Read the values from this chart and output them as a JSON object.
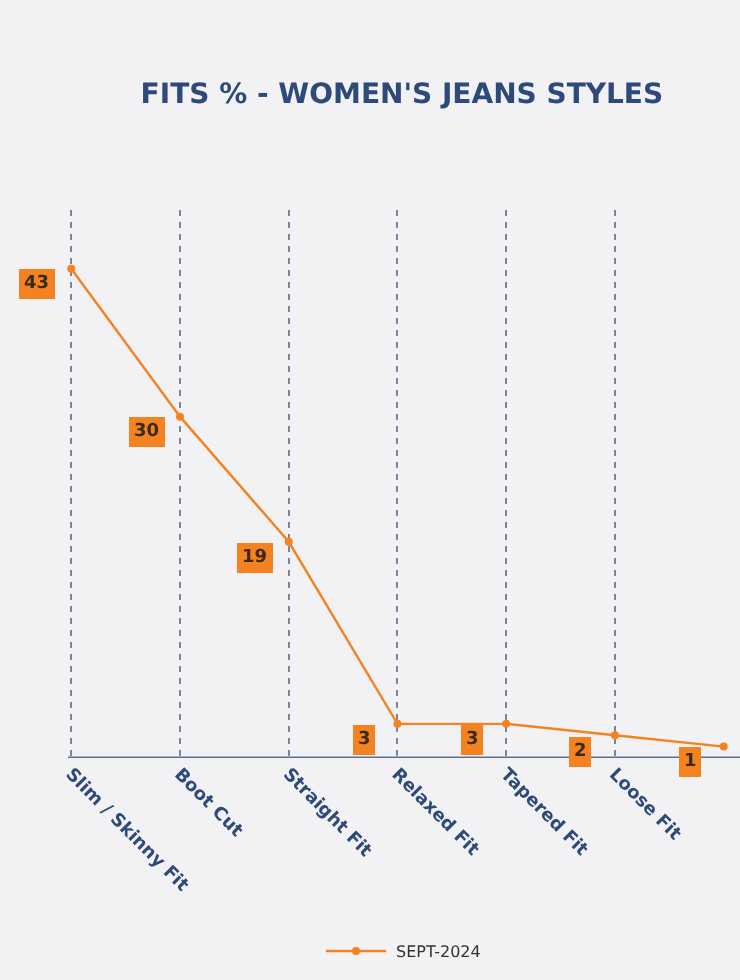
{
  "chart_data": {
    "type": "line",
    "title": "FITS % - WOMEN'S JEANS STYLES",
    "categories": [
      "Slim / Skinny Fit",
      "Boot Cut",
      "Straight Fit",
      "Relaxed Fit",
      "Tapered Fit",
      "Loose Fit",
      null
    ],
    "series": [
      {
        "name": "SEPT-2024",
        "color": "#f58220",
        "values": [
          43,
          30,
          19,
          3,
          3,
          2,
          1
        ]
      }
    ],
    "data_labels": true,
    "grid": "x",
    "legend": "bottom",
    "marker": "circle",
    "line_style": "solid"
  }
}
